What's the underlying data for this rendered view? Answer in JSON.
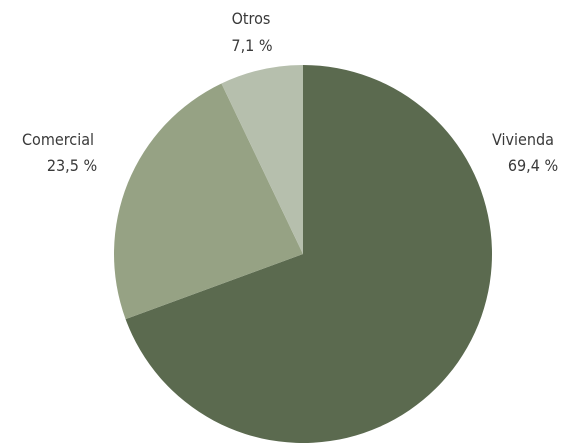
{
  "chart_data": {
    "type": "pie",
    "categories": [
      "Vivienda",
      "Comercial",
      "Otros"
    ],
    "values": [
      69.4,
      23.5,
      7.1
    ],
    "value_labels": [
      "69,4 %",
      "23,5 %",
      "7,1 %"
    ],
    "colors": [
      "#5b6a4f",
      "#96a284",
      "#b6bfad"
    ],
    "start_angle": "top",
    "direction": "clockwise",
    "legend": "none"
  }
}
